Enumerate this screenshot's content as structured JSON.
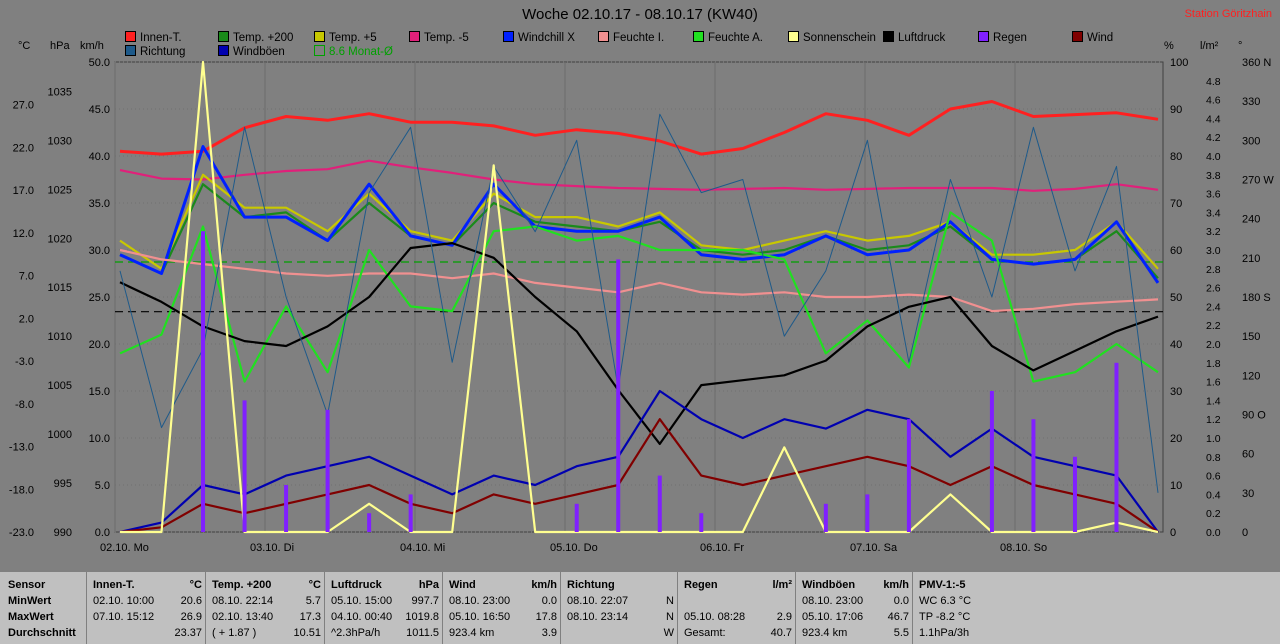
{
  "title": "Woche 02.10.17 - 08.10.17 (KW40)",
  "station": "Station Göritzhain",
  "units": {
    "celsius": "°C",
    "hpa": "hPa",
    "kmh": "km/h",
    "percent": "%",
    "rain": "l/m²",
    "deg": "°"
  },
  "legend": [
    {
      "label": "Innen-T.",
      "color": "#ff2020"
    },
    {
      "label": "Richtung",
      "color": "#1e5a8a"
    },
    {
      "label": "Temp. +200",
      "color": "#1a8a1a"
    },
    {
      "label": "Windböen",
      "color": "#0000b0"
    },
    {
      "label": "Temp. +5",
      "color": "#c8c800"
    },
    {
      "label": "8.6 Monat-Ø",
      "color": "#00a000",
      "outline": true
    },
    {
      "label": "Temp. -5",
      "color": "#e0207a"
    },
    {
      "label": "Windchill X",
      "color": "#0020ff"
    },
    {
      "label": "Feuchte I.",
      "color": "#f09090"
    },
    {
      "label": "Feuchte A.",
      "color": "#20e020"
    },
    {
      "label": "Sonnenschein",
      "color": "#ffff90"
    },
    {
      "label": "Luftdruck",
      "color": "#000000"
    },
    {
      "label": "Regen",
      "color": "#8020ff"
    },
    {
      "label": "Wind",
      "color": "#800000"
    }
  ],
  "chart_data": {
    "type": "line",
    "title": "Woche 02.10.17 - 08.10.17 (KW40)",
    "x_ticks": [
      "02.10.  Mo",
      "03.10.  Di",
      "04.10.  Mi",
      "05.10.  Do",
      "06.10.  Fr",
      "07.10.  Sa",
      "08.10.  So"
    ],
    "axes": {
      "temp_c": {
        "ticks": [
          "27.0",
          "22.0",
          "17.0",
          "12.0",
          "7.0",
          "2.0",
          "-3.0",
          "-8.0",
          "-13.0",
          "-18.0",
          "-23.0"
        ],
        "range": [
          -23,
          32
        ]
      },
      "pressure_hpa": {
        "ticks": [
          "1035",
          "1030",
          "1025",
          "1020",
          "1015",
          "1010",
          "1005",
          "1000",
          "995",
          "990"
        ],
        "range": [
          990,
          1038
        ]
      },
      "wind_kmh": {
        "ticks": [
          "50.0",
          "45.0",
          "40.0",
          "35.0",
          "30.0",
          "25.0",
          "20.0",
          "15.0",
          "10.0",
          "5.0",
          "0.0"
        ],
        "range": [
          0,
          50
        ]
      },
      "humidity_pct": {
        "ticks": [
          "100",
          "90",
          "80",
          "70",
          "60",
          "50",
          "40",
          "30",
          "20",
          "10",
          "0"
        ],
        "range": [
          0,
          100
        ]
      },
      "rain_lm2": {
        "ticks": [
          "4.8",
          "4.6",
          "4.4",
          "4.2",
          "4.0",
          "3.8",
          "3.6",
          "3.4",
          "3.2",
          "3.0",
          "2.8",
          "2.6",
          "2.4",
          "2.2",
          "2.0",
          "1.8",
          "1.6",
          "1.4",
          "1.2",
          "1.0",
          "0.8",
          "0.6",
          "0.4",
          "0.2",
          "0.0"
        ],
        "range": [
          0,
          5.0
        ]
      },
      "direction_deg": {
        "ticks": [
          "360 N",
          "330",
          "300",
          "270 W",
          "240",
          "210",
          "180 S",
          "150",
          "120",
          "90 O",
          "60",
          "30",
          "0"
        ],
        "range": [
          0,
          360
        ]
      }
    },
    "series": [
      {
        "name": "Innen-T.",
        "axis": "wind_kmh",
        "color": "#ff2020",
        "values": [
          40.5,
          40.2,
          40.5,
          43,
          44.2,
          43.8,
          44.5,
          43.6,
          43.6,
          43.2,
          42.2,
          42.8,
          42.4,
          41.6,
          40.2,
          40.8,
          42.5,
          44.5,
          43.8,
          42.2,
          45,
          45.8,
          44.2,
          44.4,
          44.6,
          43.9
        ]
      },
      {
        "name": "Temp. -5",
        "axis": "wind_kmh",
        "color": "#e0207a",
        "values": [
          38.5,
          37.6,
          37.5,
          38,
          38.4,
          38.6,
          39.5,
          38.8,
          38.2,
          37.5,
          37,
          36.8,
          36.6,
          36.5,
          36.4,
          36.5,
          36.6,
          36.4,
          36.5,
          36.6,
          36.6,
          36.6,
          36.3,
          36.5,
          37.0,
          36.4
        ]
      },
      {
        "name": "Temp. +5",
        "axis": "wind_kmh",
        "color": "#c8c800",
        "values": [
          31,
          28,
          38,
          34.5,
          34.5,
          32,
          36,
          32,
          31,
          36,
          33.5,
          33.5,
          32.5,
          34,
          30.5,
          30,
          31,
          32,
          31,
          31.5,
          33,
          29.5,
          29.5,
          30,
          33,
          28
        ]
      },
      {
        "name": "Temp. +200",
        "axis": "wind_kmh",
        "color": "#1a8a1a",
        "values": [
          29.5,
          27.5,
          37,
          33.5,
          34,
          31,
          35,
          31.5,
          30.5,
          35,
          33,
          32.5,
          32,
          33,
          30,
          29.5,
          30,
          31.5,
          30,
          30.5,
          32.5,
          29,
          28.5,
          29,
          32,
          27
        ]
      },
      {
        "name": "Windchill X",
        "axis": "wind_kmh",
        "color": "#0020ff",
        "values": [
          29.5,
          27.5,
          41,
          33.5,
          33.5,
          31,
          37,
          31.5,
          30.5,
          37,
          32.5,
          32,
          32,
          33.5,
          29.5,
          29,
          29.5,
          31.5,
          29.5,
          30,
          33,
          29,
          28.5,
          29,
          33,
          26.5
        ]
      },
      {
        "name": "Feuchte I.",
        "axis": "humidity_pct",
        "color": "#f09090",
        "values": [
          60,
          58,
          57,
          56,
          55,
          54.5,
          55,
          55,
          54,
          55,
          53,
          52,
          51,
          53,
          51,
          50.5,
          51,
          50,
          50,
          50.5,
          50,
          47,
          47.5,
          48.5,
          49,
          49.5
        ]
      },
      {
        "name": "Feuchte A.",
        "axis": "humidity_pct",
        "color": "#20e020",
        "values": [
          38,
          42,
          65,
          32,
          48,
          34,
          60,
          48,
          47,
          64,
          65,
          62,
          63,
          60,
          60,
          60,
          58,
          38,
          45,
          35,
          68,
          62,
          32,
          34,
          40,
          34
        ]
      },
      {
        "name": "Luftdruck",
        "axis": "pressure_hpa",
        "color": "#000000",
        "values": [
          1015.5,
          1013.5,
          1011,
          1009.5,
          1009,
          1011,
          1014,
          1019,
          1019.5,
          1018,
          1014,
          1010.5,
          1004.5,
          999,
          1005,
          1005.5,
          1006,
          1007.5,
          1011,
          1013,
          1014,
          1009,
          1006.5,
          1008.5,
          1010.5,
          1012
        ]
      },
      {
        "name": "Windböen",
        "axis": "wind_kmh",
        "color": "#0000b0",
        "values": [
          0,
          1,
          5,
          4,
          6,
          7,
          8,
          6,
          4,
          6,
          5,
          7,
          8,
          15,
          12,
          10,
          12,
          11,
          13,
          12,
          8,
          11,
          8,
          7,
          6,
          0
        ]
      },
      {
        "name": "Wind",
        "axis": "wind_kmh",
        "color": "#800000",
        "values": [
          0,
          0.5,
          3,
          2,
          3,
          4,
          5,
          3,
          2,
          4,
          3,
          4,
          5,
          12,
          6,
          5,
          6,
          7,
          8,
          7,
          5,
          7,
          5,
          4,
          3,
          0
        ]
      },
      {
        "name": "Richtung",
        "axis": "direction_deg",
        "color": "#1e5a8a",
        "values": [
          200,
          80,
          140,
          310,
          180,
          90,
          260,
          310,
          130,
          280,
          230,
          300,
          110,
          320,
          260,
          270,
          150,
          200,
          300,
          130,
          270,
          180,
          310,
          200,
          280,
          30
        ]
      },
      {
        "name": "Sonnenschein",
        "axis": "wind_kmh",
        "color": "#ffff90",
        "values": [
          0,
          0,
          50,
          0,
          0,
          0,
          3,
          0,
          0,
          39,
          0,
          0,
          0,
          0,
          0,
          0,
          9,
          0,
          0,
          0,
          4,
          0,
          0,
          0,
          1,
          0
        ]
      },
      {
        "name": "Regen",
        "axis": "rain_lm2",
        "type": "bar",
        "color": "#8020ff",
        "values": [
          0,
          0,
          3.2,
          1.4,
          0.5,
          1.3,
          0.2,
          0.4,
          0,
          0,
          0,
          0.3,
          2.9,
          0.6,
          0.2,
          0,
          0,
          0.3,
          0.4,
          1.2,
          0,
          1.5,
          1.2,
          0.8,
          1.8,
          0
        ]
      }
    ],
    "reference_lines": [
      {
        "label": "8.6 Monat-Ø",
        "axis": "temp_c",
        "value": 8.6,
        "color": "#00a000"
      },
      {
        "label": "",
        "axis": "pressure_hpa",
        "value": 1012.5,
        "color": "#000000"
      }
    ]
  },
  "table": {
    "row_labels": [
      "Sensor",
      "MinWert",
      "MaxWert",
      "Durchschnitt"
    ],
    "columns": [
      {
        "header": "Innen-T.",
        "unit": "°C",
        "rows": [
          [
            "02.10.  10:00",
            "20.6"
          ],
          [
            "07.10.  15:12",
            "26.9"
          ],
          [
            "",
            "23.37"
          ]
        ]
      },
      {
        "header": "Temp. +200",
        "unit": "°C",
        "rows": [
          [
            "08.10.  22:14",
            "5.7"
          ],
          [
            "02.10.  13:40",
            "17.3"
          ],
          [
            "( + 1.87 )",
            "10.51"
          ]
        ]
      },
      {
        "header": "Luftdruck",
        "unit": "hPa",
        "rows": [
          [
            "05.10.  15:00",
            "997.7"
          ],
          [
            "04.10.  00:40",
            "1019.8"
          ],
          [
            "^2.3hPa/h",
            "1011.5"
          ]
        ]
      },
      {
        "header": "Wind",
        "unit": "km/h",
        "rows": [
          [
            "08.10.  23:00",
            "0.0"
          ],
          [
            "05.10.  16:50",
            "17.8"
          ],
          [
            "923.4 km",
            "3.9"
          ]
        ]
      },
      {
        "header": "Richtung",
        "unit": "",
        "rows": [
          [
            "08.10.  22:07",
            "N"
          ],
          [
            "08.10.  23:14",
            "N"
          ],
          [
            "",
            "W"
          ]
        ]
      },
      {
        "header": "Regen",
        "unit": "l/m²",
        "rows": [
          [
            "",
            ""
          ],
          [
            "05.10.  08:28",
            "2.9"
          ],
          [
            "Gesamt:",
            "40.7"
          ]
        ]
      },
      {
        "header": "Windböen",
        "unit": "km/h",
        "rows": [
          [
            "08.10.  23:00",
            "0.0"
          ],
          [
            "05.10.  17:06",
            "46.7"
          ],
          [
            "923.4 km",
            "5.5"
          ]
        ]
      },
      {
        "header": "PMV-1:-5",
        "unit": "",
        "rows": [
          [
            "WC 6.3 °C",
            ""
          ],
          [
            "TP -8.2 °C",
            ""
          ],
          [
            "1.1hPa/3h",
            ""
          ]
        ]
      }
    ]
  }
}
